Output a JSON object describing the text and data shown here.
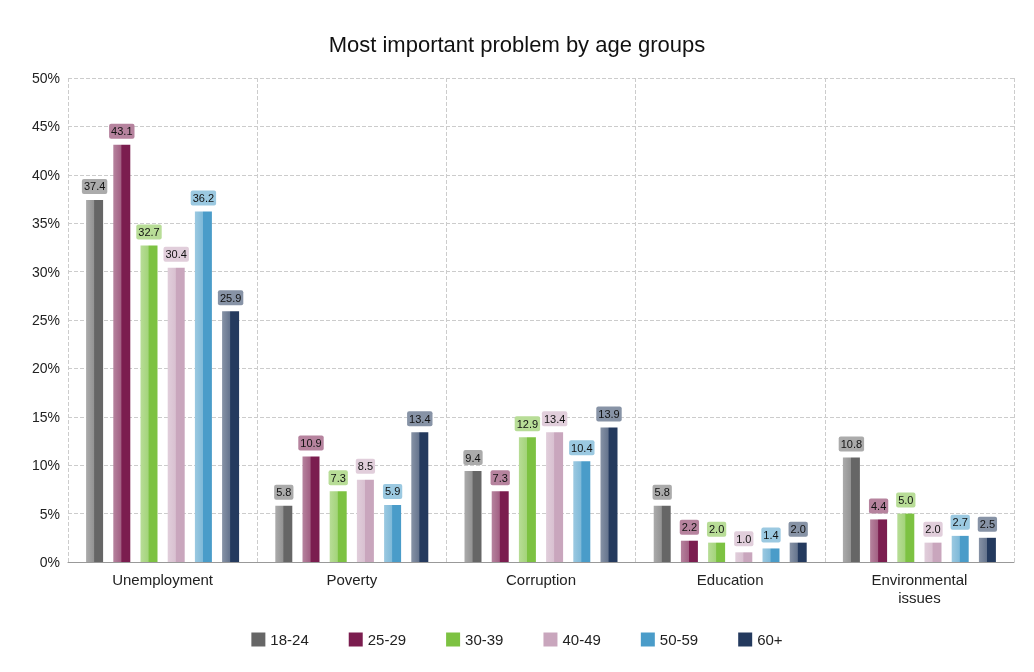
{
  "chart_data": {
    "type": "bar",
    "title": "Most important problem by age groups",
    "categories": [
      "Unemployment",
      "Poverty",
      "Corruption",
      "Education",
      "Environmental\nissues"
    ],
    "series": [
      {
        "name": "18-24",
        "color": "#666666",
        "values": [
          37.4,
          5.8,
          9.4,
          5.8,
          10.8
        ],
        "value_labels": [
          "37.4",
          "5.8",
          "9.4",
          "5.8",
          "10.8"
        ]
      },
      {
        "name": "25-29",
        "color": "#7b1d4f",
        "values": [
          43.1,
          10.9,
          7.3,
          2.2,
          4.4
        ],
        "value_labels": [
          "43.1",
          "10.9",
          "7.3",
          "2.2",
          "4.4"
        ]
      },
      {
        "name": "30-39",
        "color": "#7dc242",
        "values": [
          32.7,
          7.3,
          12.9,
          2.0,
          5.0
        ],
        "value_labels": [
          "32.7",
          "7.3",
          "12.9",
          "2.0",
          "5.0"
        ]
      },
      {
        "name": "40-49",
        "color": "#c9a6bd",
        "values": [
          30.4,
          8.5,
          13.4,
          1.0,
          2.0
        ],
        "value_labels": [
          "30.4",
          "8.5",
          "13.4",
          "1.0",
          "2.0"
        ]
      },
      {
        "name": "50-59",
        "color": "#4a9cc9",
        "values": [
          36.2,
          5.9,
          10.4,
          1.4,
          2.7
        ],
        "value_labels": [
          "36.2",
          "5.9",
          "10.4",
          "1.4",
          "2.7"
        ]
      },
      {
        "name": "60+",
        "color": "#243a5e",
        "values": [
          25.9,
          13.4,
          13.9,
          2.0,
          2.5
        ],
        "value_labels": [
          "25.9",
          "13.4",
          "13.9",
          "2.0",
          "2.5"
        ]
      }
    ],
    "ylim": [
      0,
      50
    ],
    "yticks": [
      {
        "value": 0,
        "label": "0%"
      },
      {
        "value": 5,
        "label": "5%"
      },
      {
        "value": 10,
        "label": "10%"
      },
      {
        "value": 15,
        "label": "15%"
      },
      {
        "value": 20,
        "label": "20%"
      },
      {
        "value": 25,
        "label": "25%"
      },
      {
        "value": 30,
        "label": "30%"
      },
      {
        "value": 35,
        "label": "35%"
      },
      {
        "value": 40,
        "label": "40%"
      },
      {
        "value": 45,
        "label": "45%"
      },
      {
        "value": 50,
        "label": "50%"
      }
    ],
    "grid": true,
    "legend": "bottom"
  }
}
